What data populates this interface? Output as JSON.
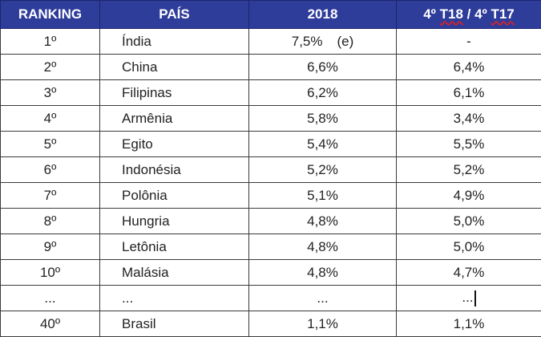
{
  "headers": {
    "ranking": "RANKING",
    "pais": "PAÍS",
    "year": "2018",
    "quarter_pre": "4º ",
    "quarter_t18": "T18",
    "quarter_mid": " / 4º ",
    "quarter_t17": "T17"
  },
  "rows": [
    {
      "rank": "1º",
      "country": "Índia",
      "v2018": "7,5%",
      "note": "(e)",
      "vq": "-"
    },
    {
      "rank": "2º",
      "country": "China",
      "v2018": "6,6%",
      "note": "",
      "vq": "6,4%"
    },
    {
      "rank": "3º",
      "country": "Filipinas",
      "v2018": "6,2%",
      "note": "",
      "vq": "6,1%"
    },
    {
      "rank": "4º",
      "country": "Armênia",
      "v2018": "5,8%",
      "note": "",
      "vq": "3,4%"
    },
    {
      "rank": "5º",
      "country": "Egito",
      "v2018": "5,4%",
      "note": "",
      "vq": "5,5%"
    },
    {
      "rank": "6º",
      "country": "Indonésia",
      "v2018": "5,2%",
      "note": "",
      "vq": "5,2%"
    },
    {
      "rank": "7º",
      "country": "Polônia",
      "v2018": "5,1%",
      "note": "",
      "vq": "4,9%"
    },
    {
      "rank": "8º",
      "country": "Hungria",
      "v2018": "4,8%",
      "note": "",
      "vq": "5,0%"
    },
    {
      "rank": "9º",
      "country": "Letônia",
      "v2018": "4,8%",
      "note": "",
      "vq": "5,0%"
    },
    {
      "rank": "10º",
      "country": "Malásia",
      "v2018": "4,8%",
      "note": "",
      "vq": "4,7%"
    },
    {
      "rank": "...",
      "country": "...",
      "v2018": "...",
      "note": "",
      "vq": "..."
    },
    {
      "rank": "40º",
      "country": "Brasil",
      "v2018": "1,1%",
      "note": "",
      "vq": "1,1%"
    }
  ]
}
